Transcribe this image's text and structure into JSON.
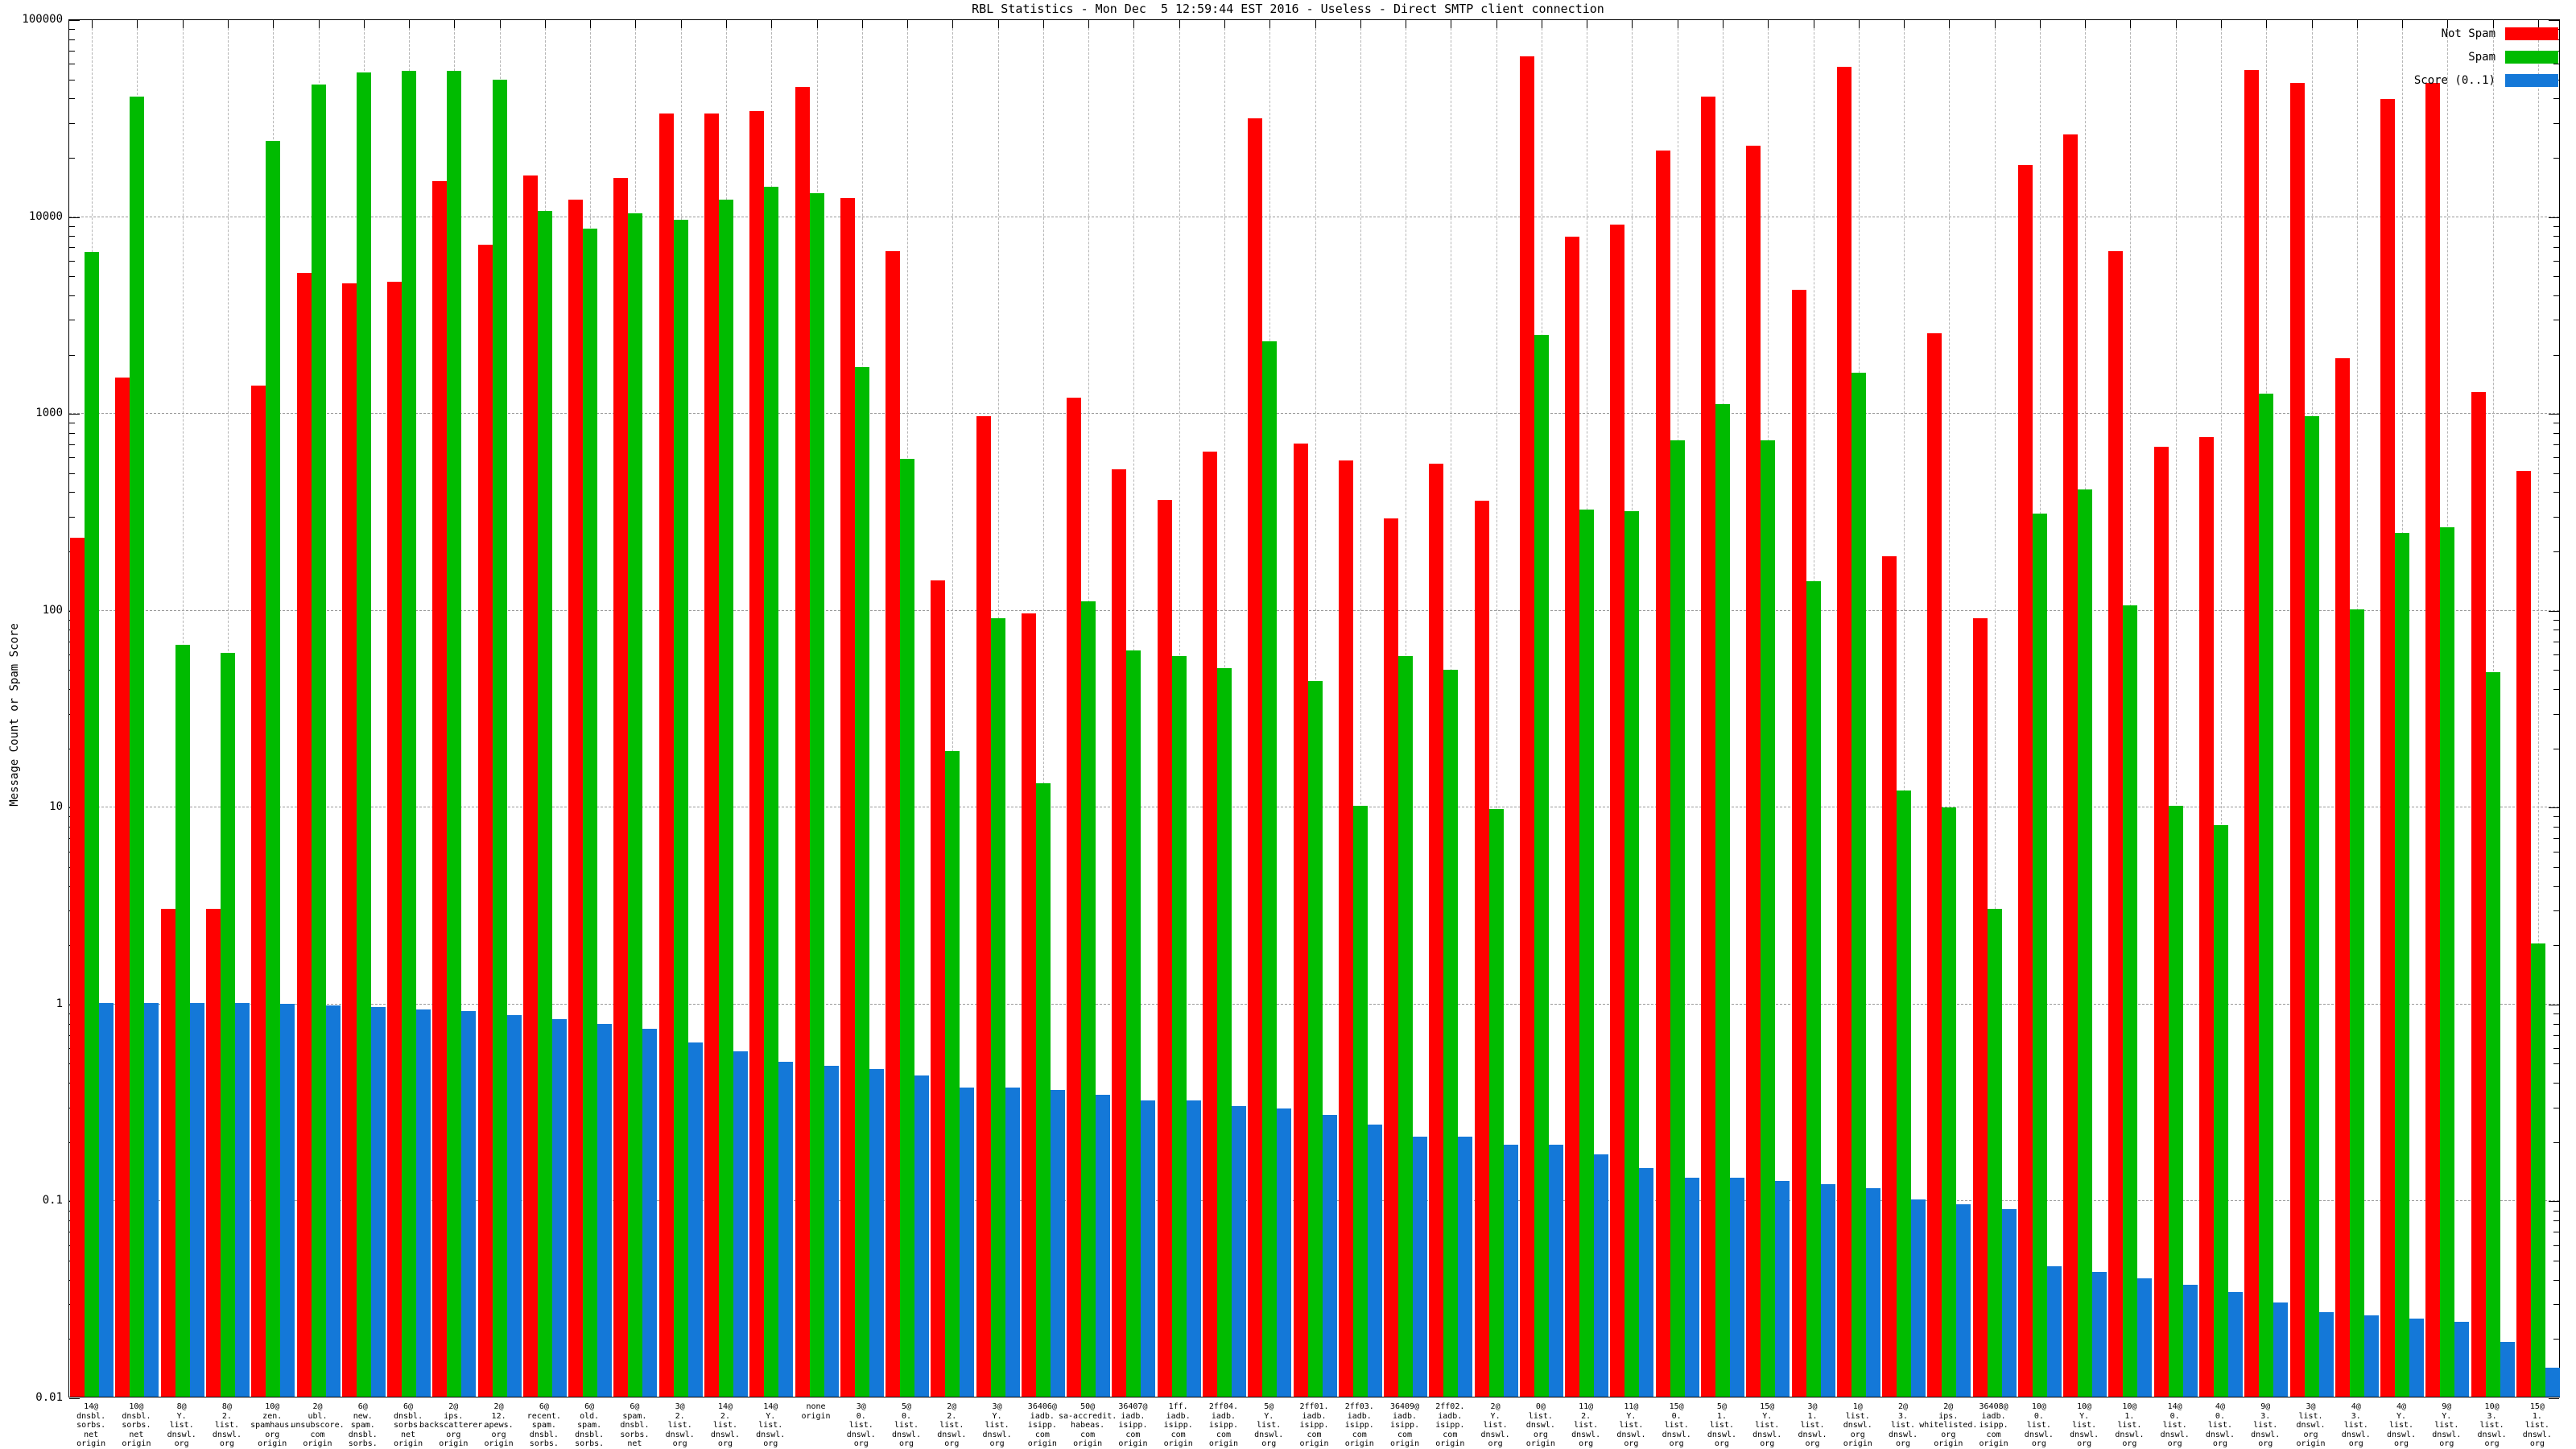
{
  "title": "RBL Statistics - Mon Dec  5 12:59:44 EST 2016 - Useless - Direct SMTP client connection",
  "y_axis": {
    "label": "Message Count or Spam Score",
    "tick_labels": [
      "100000",
      "10000",
      "1000",
      "100",
      "10",
      "1",
      "0.1",
      "0.01"
    ]
  },
  "legend": {
    "items": [
      {
        "label": "Not Spam",
        "color": "#ff0000"
      },
      {
        "label": "Spam",
        "color": "#00bb00"
      },
      {
        "label": "Score (0..1)",
        "color": "#1478d8"
      }
    ]
  },
  "chart_data": {
    "type": "bar",
    "scale": "log",
    "title": "RBL Statistics - Mon Dec  5 12:59:44 EST 2016 - Useless - Direct SMTP client connection",
    "xlabel": "",
    "ylabel": "Message Count or Spam Score",
    "ylim": [
      0.01,
      100000
    ],
    "grid": true,
    "legend_position": "top-right",
    "series_names": [
      "Not Spam",
      "Spam",
      "Score (0..1)"
    ],
    "groups": [
      {
        "label": "14@\ndnsbl.\nsorbs.\nnet\norigin",
        "not_spam": 230,
        "spam": 6500,
        "score": 1.0
      },
      {
        "label": "10@\ndnsbl.\nsorbs.\nnet\norigin",
        "not_spam": 1500,
        "spam": 40000,
        "score": 1.0
      },
      {
        "label": "8@\nY.\nlist.\ndnswl.\norg\norigin",
        "not_spam": 3,
        "spam": 66,
        "score": 1.0
      },
      {
        "label": "8@\n2.\nlist.\ndnswl.\norg\norigin",
        "not_spam": 3,
        "spam": 60,
        "score": 1.0
      },
      {
        "label": "10@\nzen.\nspamhaus.\norg\norigin",
        "not_spam": 1370,
        "spam": 24000,
        "score": 0.99
      },
      {
        "label": "2@\nubl.\nunsubscore.\ncom\norigin",
        "not_spam": 5100,
        "spam": 46000,
        "score": 0.97
      },
      {
        "label": "6@\nnew.\nspam.\ndnsbl.\nsorbs.\nnet\norigin",
        "not_spam": 4500,
        "spam": 53000,
        "score": 0.95
      },
      {
        "label": "6@\ndnsbl.\nsorbs.\nnet\norigin",
        "not_spam": 4600,
        "spam": 54000,
        "score": 0.93
      },
      {
        "label": "2@\nips.\nbackscatterer.\norg\norigin",
        "not_spam": 15000,
        "spam": 54000,
        "score": 0.91
      },
      {
        "label": "2@\n12.\napews.\norg\norigin",
        "not_spam": 7100,
        "spam": 49000,
        "score": 0.87
      },
      {
        "label": "6@\nrecent.\nspam.\ndnsbl.\nsorbs.\nnet\norigin",
        "not_spam": 16000,
        "spam": 10500,
        "score": 0.83
      },
      {
        "label": "6@\nold.\nspam.\ndnsbl.\nsorbs.\nnet\norigin",
        "not_spam": 12000,
        "spam": 8600,
        "score": 0.78
      },
      {
        "label": "6@\nspam.\ndnsbl.\nsorbs.\nnet\norigin",
        "not_spam": 15500,
        "spam": 10200,
        "score": 0.74
      },
      {
        "label": "3@\n2.\nlist.\ndnswl.\norg\norigin",
        "not_spam": 33000,
        "spam": 9500,
        "score": 0.63
      },
      {
        "label": "14@\n2.\nlist.\ndnswl.\norg\norigin",
        "not_spam": 33000,
        "spam": 12000,
        "score": 0.57
      },
      {
        "label": "14@\nY.\nlist.\ndnswl.\norg\norigin",
        "not_spam": 34000,
        "spam": 14000,
        "score": 0.5
      },
      {
        "label": "none\norigin",
        "not_spam": 45000,
        "spam": 13000,
        "score": 0.48
      },
      {
        "label": "3@\n0.\nlist.\ndnswl.\norg\norigin",
        "not_spam": 12200,
        "spam": 1700,
        "score": 0.46
      },
      {
        "label": "5@\n0.\nlist.\ndnswl.\norg\norigin",
        "not_spam": 6600,
        "spam": 580,
        "score": 0.43
      },
      {
        "label": "2@\n2.\nlist.\ndnswl.\norg\norigin",
        "not_spam": 140,
        "spam": 19,
        "score": 0.37
      },
      {
        "label": "3@\nY.\nlist.\ndnswl.\norg\norigin",
        "not_spam": 955,
        "spam": 90,
        "score": 0.37
      },
      {
        "label": "36406@\niadb.\nisipp.\ncom\norigin",
        "not_spam": 95,
        "spam": 13,
        "score": 0.36
      },
      {
        "label": "50@\nsa-accredit.\nhabeas.\ncom\norigin",
        "not_spam": 1190,
        "spam": 110,
        "score": 0.34
      },
      {
        "label": "36407@\niadb.\nisipp.\ncom\norigin",
        "not_spam": 515,
        "spam": 62,
        "score": 0.32
      },
      {
        "label": "1ff.\niadb.\nisipp.\ncom\norigin",
        "not_spam": 360,
        "spam": 58,
        "score": 0.32
      },
      {
        "label": "2ff04.\niadb.\nisipp.\ncom\norigin",
        "not_spam": 630,
        "spam": 50,
        "score": 0.3
      },
      {
        "label": "5@\nY.\nlist.\ndnswl.\norg\norigin",
        "not_spam": 31000,
        "spam": 2300,
        "score": 0.29
      },
      {
        "label": "2ff01.\niadb.\nisipp.\ncom\norigin",
        "not_spam": 695,
        "spam": 43,
        "score": 0.27
      },
      {
        "label": "2ff03.\niadb.\nisipp.\ncom\norigin",
        "not_spam": 570,
        "spam": 10,
        "score": 0.24
      },
      {
        "label": "36409@\niadb.\nisipp.\ncom\norigin",
        "not_spam": 290,
        "spam": 58,
        "score": 0.21
      },
      {
        "label": "2ff02.\niadb.\nisipp.\ncom\norigin",
        "not_spam": 550,
        "spam": 49,
        "score": 0.21
      },
      {
        "label": "2@\nY.\nlist.\ndnswl.\norg\norigin",
        "not_spam": 355,
        "spam": 9.7,
        "score": 0.19
      },
      {
        "label": "0@\nlist.\ndnswl.\norg\norigin",
        "not_spam": 64000,
        "spam": 2480,
        "score": 0.19
      },
      {
        "label": "11@\n2.\nlist.\ndnswl.\norg\norigin",
        "not_spam": 7800,
        "spam": 320,
        "score": 0.17
      },
      {
        "label": "11@\nY.\nlist.\ndnswl.\norg\norigin",
        "not_spam": 9000,
        "spam": 315,
        "score": 0.145
      },
      {
        "label": "15@\n0.\nlist.\ndnswl.\norg\norigin",
        "not_spam": 21300,
        "spam": 720,
        "score": 0.13
      },
      {
        "label": "5@\n1.\nlist.\ndnswl.\norg\norigin",
        "not_spam": 40000,
        "spam": 1100,
        "score": 0.13
      },
      {
        "label": "15@\nY.\nlist.\ndnswl.\norg\norigin",
        "not_spam": 22500,
        "spam": 720,
        "score": 0.125
      },
      {
        "label": "3@\n1.\nlist.\ndnswl.\norg\norigin",
        "not_spam": 4170,
        "spam": 139,
        "score": 0.12
      },
      {
        "label": "1@\nlist.\ndnswl.\norg\norigin",
        "not_spam": 56600,
        "spam": 1590,
        "score": 0.115
      },
      {
        "label": "2@\n3.\nlist.\ndnswl.\norg\norigin",
        "not_spam": 185,
        "spam": 12,
        "score": 0.1
      },
      {
        "label": "2@\nips.\nwhitelisted.\norg\norigin",
        "not_spam": 2530,
        "spam": 9.8,
        "score": 0.095
      },
      {
        "label": "36408@\niadb.\nisipp.\ncom\norigin",
        "not_spam": 90,
        "spam": 3,
        "score": 0.09
      },
      {
        "label": "10@\n0.\nlist.\ndnswl.\norg\norigin",
        "not_spam": 18100,
        "spam": 307,
        "score": 0.046
      },
      {
        "label": "10@\nY.\nlist.\ndnswl.\norg\norigin",
        "not_spam": 25900,
        "spam": 407,
        "score": 0.043
      },
      {
        "label": "10@\n1.\nlist.\ndnswl.\norg\norigin",
        "not_spam": 6600,
        "spam": 105,
        "score": 0.04
      },
      {
        "label": "14@\n0.\nlist.\ndnswl.\norg\norigin",
        "not_spam": 670,
        "spam": 10,
        "score": 0.037
      },
      {
        "label": "4@\n0.\nlist.\ndnswl.\norg\norigin",
        "not_spam": 750,
        "spam": 8,
        "score": 0.034
      },
      {
        "label": "9@\n3.\nlist.\ndnswl.\norg\norigin",
        "not_spam": 55000,
        "spam": 1240,
        "score": 0.03
      },
      {
        "label": "3@\nlist.\ndnswl.\norg\norigin",
        "not_spam": 47300,
        "spam": 955,
        "score": 0.027
      },
      {
        "label": "4@\n3.\nlist.\ndnswl.\norg\norigin",
        "not_spam": 1890,
        "spam": 100,
        "score": 0.026
      },
      {
        "label": "4@\nY.\nlist.\ndnswl.\norg\norigin",
        "not_spam": 39000,
        "spam": 243,
        "score": 0.025
      },
      {
        "label": "9@\nY.\nlist.\ndnswl.\norg\norigin",
        "not_spam": 47000,
        "spam": 260,
        "score": 0.024
      },
      {
        "label": "10@\n3.\nlist.\ndnswl.\norg\norigin",
        "not_spam": 1270,
        "spam": 48,
        "score": 0.019
      },
      {
        "label": "15@\n1.\nlist.\ndnswl.\norg\norigin",
        "not_spam": 505,
        "spam": 2,
        "score": 0.014
      }
    ]
  }
}
